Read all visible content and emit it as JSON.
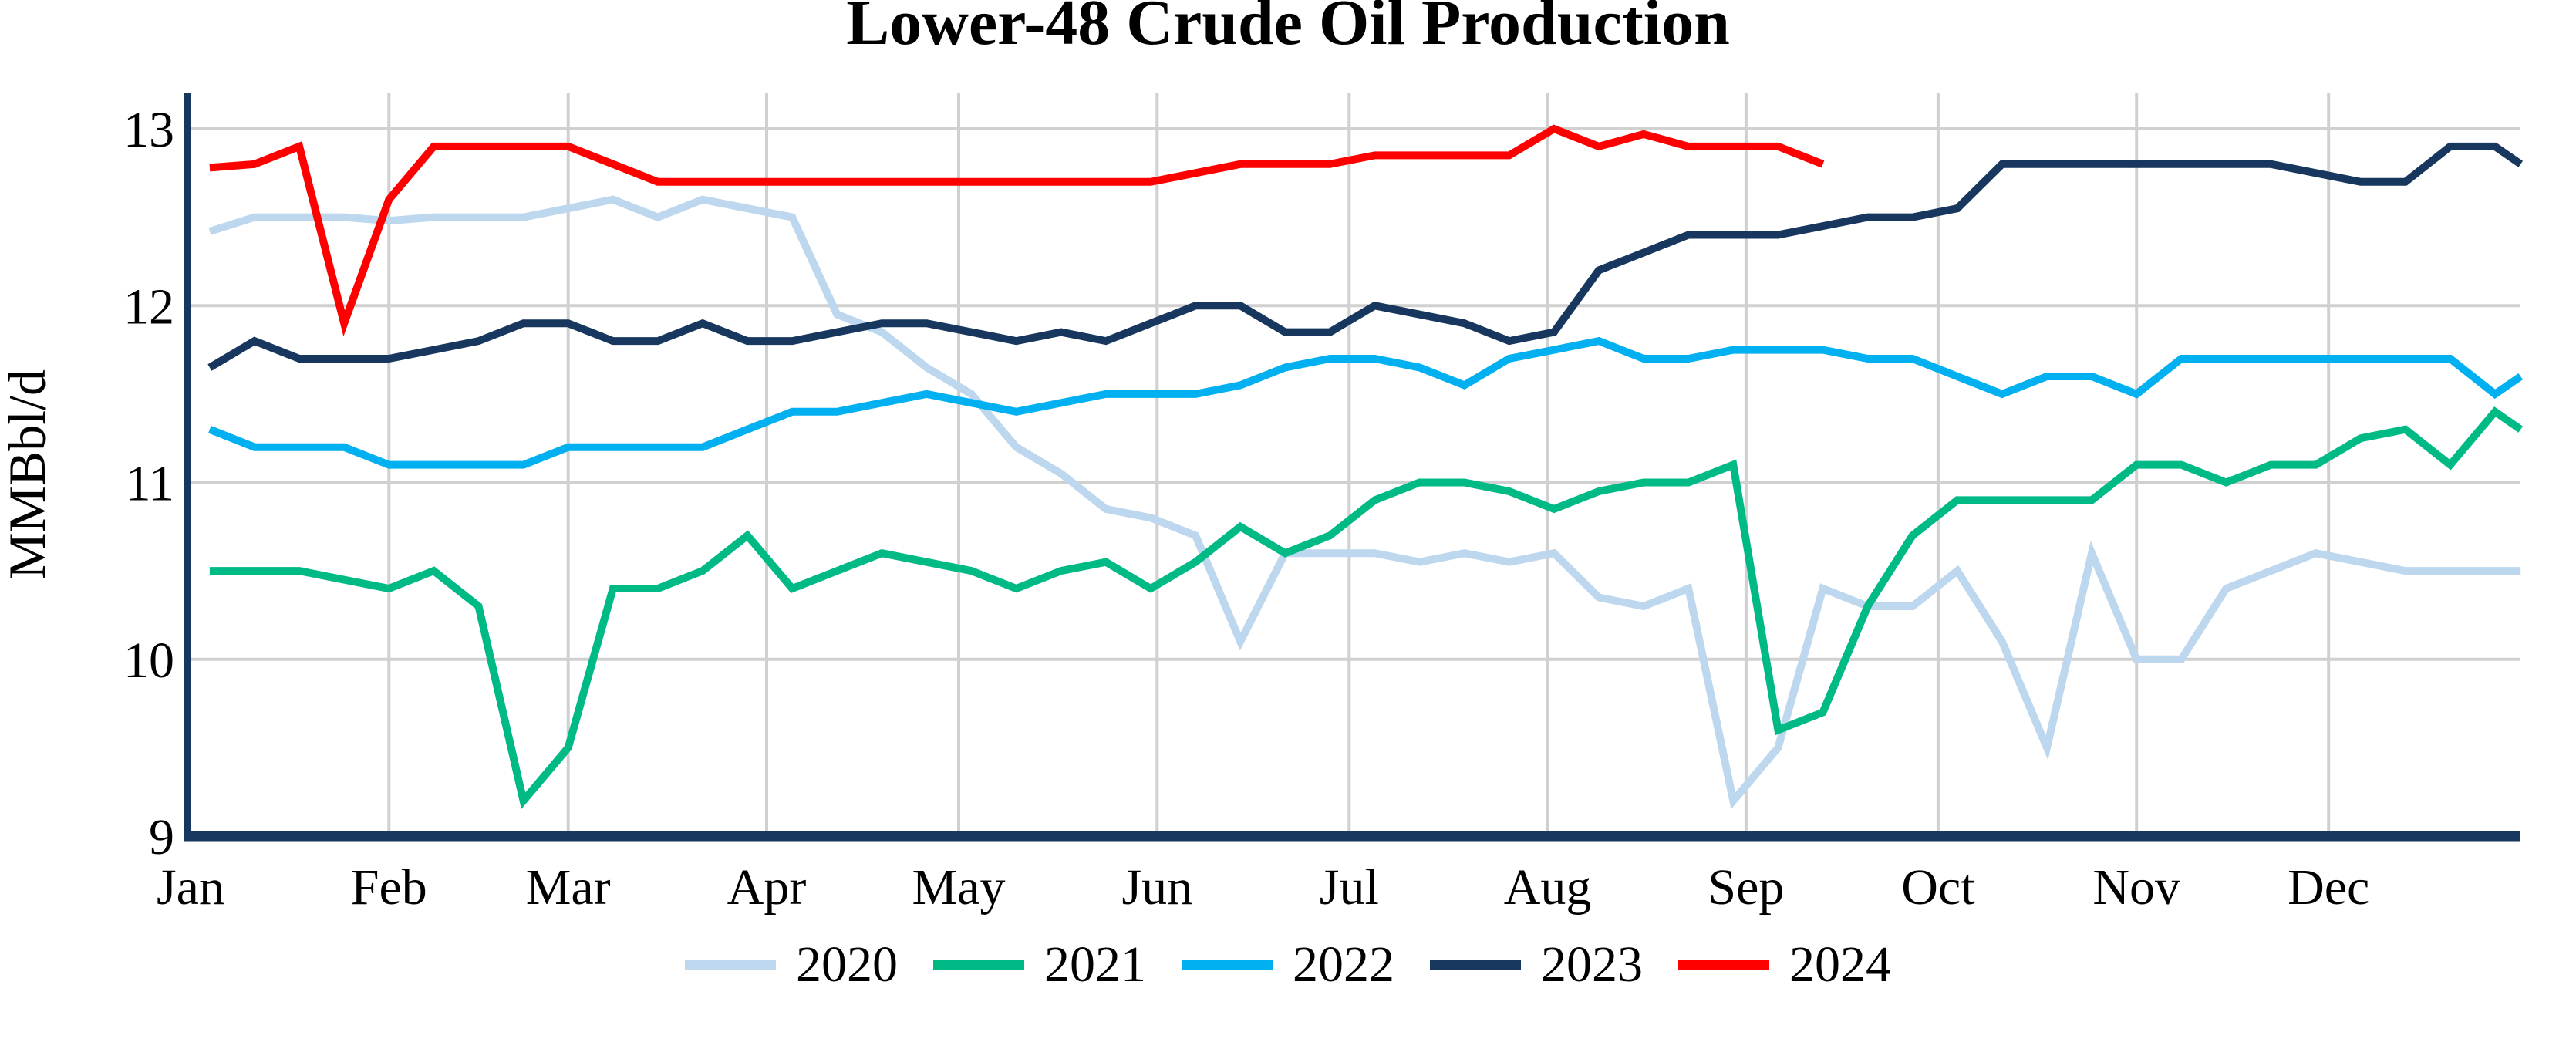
{
  "page": {
    "title": "Lower-48 Crude Oil Production"
  },
  "style": {
    "background": "#FFFFFF",
    "axis_color": "#17375E",
    "grid_color": "#D0D0D0",
    "text_color": "#000000"
  },
  "chart_data": {
    "type": "line",
    "title": "Lower-48 Crude Oil Production",
    "xlabel": "",
    "ylabel": "MMBbl/d",
    "ylim": [
      9,
      13
    ],
    "y_ticks": [
      9,
      10,
      11,
      12,
      13
    ],
    "x_tick_labels": [
      "Jan",
      "Feb",
      "Mar",
      "Apr",
      "May",
      "Jun",
      "Jul",
      "Aug",
      "Sep",
      "Oct",
      "Nov",
      "Dec"
    ],
    "month_start_days": [
      0,
      31,
      59,
      90,
      120,
      151,
      181,
      212,
      243,
      273,
      304,
      334
    ],
    "x_unit": "weekly samples (day of year = first_sample_day + 7 * index)",
    "first_sample_day": 3,
    "sample_interval_days": 7,
    "grid": "on",
    "legend_position": "bottom",
    "series": [
      {
        "name": "2020",
        "color": "#BDD7EE",
        "values": [
          12.42,
          12.5,
          12.5,
          12.5,
          12.48,
          12.5,
          12.5,
          12.5,
          12.55,
          12.6,
          12.5,
          12.6,
          12.55,
          12.5,
          11.95,
          11.85,
          11.65,
          11.5,
          11.2,
          11.05,
          10.85,
          10.8,
          10.7,
          10.1,
          10.6,
          10.6,
          10.6,
          10.55,
          10.6,
          10.55,
          10.6,
          10.35,
          10.3,
          10.4,
          9.2,
          9.5,
          10.4,
          10.3,
          10.3,
          10.5,
          10.1,
          9.5,
          10.6,
          10.0,
          10.0,
          10.4,
          10.5,
          10.6,
          10.55,
          10.5,
          10.5,
          10.5,
          10.5
        ]
      },
      {
        "name": "2021",
        "color": "#00BA86",
        "values": [
          10.5,
          10.5,
          10.5,
          10.45,
          10.4,
          10.5,
          10.3,
          9.2,
          9.5,
          10.4,
          10.4,
          10.5,
          10.7,
          10.4,
          10.5,
          10.6,
          10.55,
          10.5,
          10.4,
          10.5,
          10.55,
          10.4,
          10.55,
          10.75,
          10.6,
          10.7,
          10.9,
          11.0,
          11.0,
          10.95,
          10.85,
          10.95,
          11.0,
          11.0,
          11.1,
          9.6,
          9.7,
          10.3,
          10.7,
          10.9,
          10.9,
          10.9,
          10.9,
          11.1,
          11.1,
          11.0,
          11.1,
          11.1,
          11.25,
          11.3,
          11.1,
          11.4,
          11.3
        ]
      },
      {
        "name": "2022",
        "color": "#00B0F0",
        "values": [
          11.3,
          11.2,
          11.2,
          11.2,
          11.1,
          11.1,
          11.1,
          11.1,
          11.2,
          11.2,
          11.2,
          11.2,
          11.3,
          11.4,
          11.4,
          11.45,
          11.5,
          11.45,
          11.4,
          11.45,
          11.5,
          11.5,
          11.5,
          11.55,
          11.65,
          11.7,
          11.7,
          11.65,
          11.55,
          11.7,
          11.75,
          11.8,
          11.7,
          11.7,
          11.75,
          11.75,
          11.75,
          11.7,
          11.7,
          11.6,
          11.5,
          11.6,
          11.6,
          11.5,
          11.7,
          11.7,
          11.7,
          11.7,
          11.7,
          11.7,
          11.7,
          11.5,
          11.6
        ]
      },
      {
        "name": "2023",
        "color": "#17375E",
        "values": [
          11.65,
          11.8,
          11.7,
          11.7,
          11.7,
          11.75,
          11.8,
          11.9,
          11.9,
          11.8,
          11.8,
          11.9,
          11.8,
          11.8,
          11.85,
          11.9,
          11.9,
          11.85,
          11.8,
          11.85,
          11.8,
          11.9,
          12.0,
          12.0,
          11.85,
          11.85,
          12.0,
          11.95,
          11.9,
          11.8,
          11.85,
          12.2,
          12.3,
          12.4,
          12.4,
          12.4,
          12.45,
          12.5,
          12.5,
          12.55,
          12.8,
          12.8,
          12.8,
          12.8,
          12.8,
          12.8,
          12.8,
          12.75,
          12.7,
          12.7,
          12.9,
          12.9,
          12.8
        ]
      },
      {
        "name": "2024",
        "color": "#FF0000",
        "values": [
          12.78,
          12.8,
          12.9,
          11.9,
          12.6,
          12.9,
          12.9,
          12.9,
          12.9,
          12.8,
          12.7,
          12.7,
          12.7,
          12.7,
          12.7,
          12.7,
          12.7,
          12.7,
          12.7,
          12.7,
          12.7,
          12.7,
          12.75,
          12.8,
          12.8,
          12.8,
          12.85,
          12.85,
          12.85,
          12.85,
          13.0,
          12.9,
          12.97,
          12.9,
          12.9,
          12.9,
          12.8
        ]
      }
    ]
  }
}
